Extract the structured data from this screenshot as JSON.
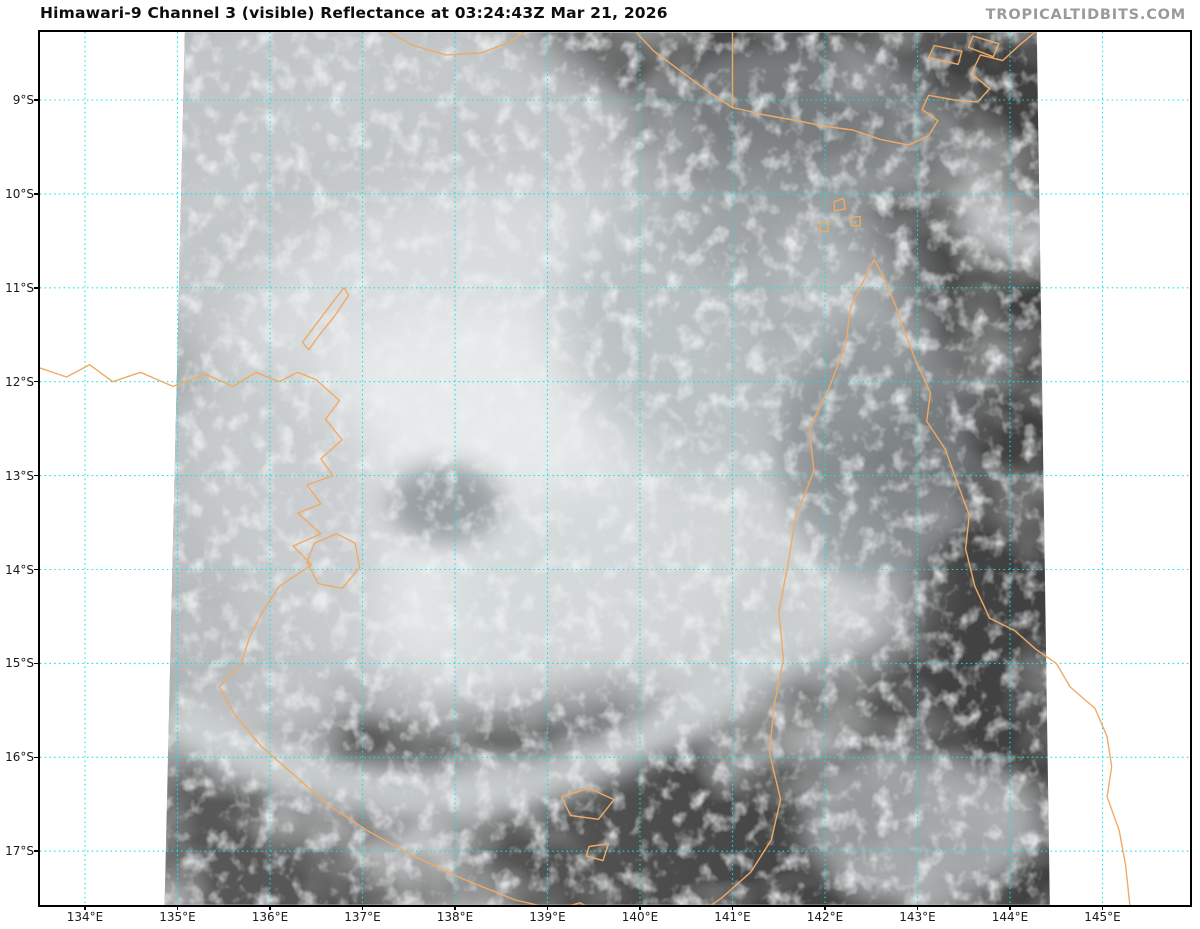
{
  "title": "Himawari-9 Channel 3 (visible) Reflectance at 03:24:43Z Mar 21, 2026",
  "watermark": "TROPICALTIDBITS.COM",
  "map": {
    "grid_color": "#0ce6e6",
    "coast_color": "#f0aa66",
    "border_color": "#000000",
    "ocean_dark": "#474747",
    "cloud_bright": "#e7eaea",
    "axes": {
      "lat_ticks": [
        {
          "value": 9,
          "label": "9°S"
        },
        {
          "value": 10,
          "label": "10°S"
        },
        {
          "value": 11,
          "label": "11°S"
        },
        {
          "value": 12,
          "label": "12°S"
        },
        {
          "value": 13,
          "label": "13°S"
        },
        {
          "value": 14,
          "label": "14°S"
        },
        {
          "value": 15,
          "label": "15°S"
        },
        {
          "value": 16,
          "label": "16°S"
        },
        {
          "value": 17,
          "label": "17°S"
        }
      ],
      "lon_ticks": [
        {
          "value": 134,
          "label": "134°E"
        },
        {
          "value": 135,
          "label": "135°E"
        },
        {
          "value": 136,
          "label": "136°E"
        },
        {
          "value": 137,
          "label": "137°E"
        },
        {
          "value": 138,
          "label": "138°E"
        },
        {
          "value": 139,
          "label": "139°E"
        },
        {
          "value": 140,
          "label": "140°E"
        },
        {
          "value": 141,
          "label": "141°E"
        },
        {
          "value": 142,
          "label": "142°E"
        },
        {
          "value": 143,
          "label": "143°E"
        },
        {
          "value": 144,
          "label": "144°E"
        },
        {
          "value": 145,
          "label": "145°E"
        }
      ]
    },
    "swath_polygon": [
      [
        135.08,
        8.28
      ],
      [
        144.29,
        8.28
      ],
      [
        144.43,
        17.57
      ],
      [
        134.86,
        17.57
      ]
    ],
    "coastlines": [
      {
        "name": "australia-mainland",
        "closed": false,
        "points": [
          [
            133.5,
            11.85
          ],
          [
            133.8,
            11.95
          ],
          [
            134.05,
            11.82
          ],
          [
            134.3,
            12.0
          ],
          [
            134.6,
            11.9
          ],
          [
            134.95,
            12.05
          ],
          [
            135.3,
            11.92
          ],
          [
            135.6,
            12.05
          ],
          [
            135.85,
            11.9
          ],
          [
            136.1,
            12.0
          ],
          [
            136.3,
            11.9
          ],
          [
            136.5,
            11.98
          ],
          [
            136.75,
            12.2
          ],
          [
            136.6,
            12.4
          ],
          [
            136.78,
            12.62
          ],
          [
            136.55,
            12.82
          ],
          [
            136.68,
            13.0
          ],
          [
            136.4,
            13.1
          ],
          [
            136.55,
            13.3
          ],
          [
            136.3,
            13.4
          ],
          [
            136.55,
            13.62
          ],
          [
            136.25,
            13.75
          ],
          [
            136.45,
            13.95
          ],
          [
            136.1,
            14.18
          ],
          [
            135.92,
            14.45
          ],
          [
            135.78,
            14.72
          ],
          [
            135.68,
            15.02
          ],
          [
            135.45,
            15.25
          ],
          [
            135.62,
            15.55
          ],
          [
            135.9,
            15.88
          ],
          [
            136.25,
            16.18
          ],
          [
            136.62,
            16.5
          ],
          [
            137.05,
            16.78
          ],
          [
            137.55,
            17.05
          ],
          [
            138.1,
            17.3
          ],
          [
            138.65,
            17.52
          ],
          [
            139.1,
            17.62
          ],
          [
            139.35,
            17.55
          ],
          [
            139.7,
            17.72
          ],
          [
            140.1,
            17.82
          ],
          [
            140.55,
            17.72
          ],
          [
            140.88,
            17.5
          ],
          [
            141.2,
            17.22
          ],
          [
            141.42,
            16.88
          ],
          [
            141.52,
            16.45
          ],
          [
            141.4,
            15.95
          ],
          [
            141.45,
            15.45
          ],
          [
            141.55,
            14.95
          ],
          [
            141.5,
            14.45
          ],
          [
            141.6,
            13.95
          ],
          [
            141.68,
            13.45
          ],
          [
            141.88,
            12.95
          ],
          [
            141.83,
            12.5
          ],
          [
            142.05,
            12.05
          ],
          [
            142.22,
            11.62
          ],
          [
            142.28,
            11.2
          ],
          [
            142.42,
            10.92
          ],
          [
            142.53,
            10.7
          ],
          [
            142.63,
            10.88
          ],
          [
            142.76,
            11.18
          ],
          [
            142.87,
            11.5
          ],
          [
            143.0,
            11.82
          ],
          [
            143.14,
            12.12
          ],
          [
            143.1,
            12.42
          ],
          [
            143.3,
            12.72
          ],
          [
            143.42,
            13.05
          ],
          [
            143.56,
            13.42
          ],
          [
            143.52,
            13.78
          ],
          [
            143.62,
            14.18
          ],
          [
            143.78,
            14.52
          ],
          [
            144.05,
            14.65
          ],
          [
            144.28,
            14.85
          ],
          [
            144.5,
            15.0
          ],
          [
            144.65,
            15.25
          ],
          [
            144.92,
            15.48
          ],
          [
            145.05,
            15.78
          ],
          [
            145.1,
            16.1
          ],
          [
            145.05,
            16.42
          ],
          [
            145.18,
            16.78
          ],
          [
            145.25,
            17.15
          ],
          [
            145.3,
            17.62
          ]
        ]
      },
      {
        "name": "png-yos-sudarso-coast",
        "closed": false,
        "points": [
          [
            137.28,
            8.27
          ],
          [
            137.55,
            8.42
          ],
          [
            137.9,
            8.52
          ],
          [
            138.28,
            8.5
          ],
          [
            138.6,
            8.38
          ],
          [
            138.75,
            8.27
          ]
        ]
      },
      {
        "name": "png-south-coast",
        "closed": false,
        "points": [
          [
            139.95,
            8.27
          ],
          [
            140.15,
            8.48
          ],
          [
            140.45,
            8.7
          ],
          [
            140.75,
            8.92
          ],
          [
            141.0,
            9.08
          ],
          [
            141.35,
            9.16
          ],
          [
            141.7,
            9.22
          ],
          [
            142.0,
            9.28
          ],
          [
            142.3,
            9.32
          ],
          [
            142.6,
            9.42
          ],
          [
            142.9,
            9.48
          ],
          [
            143.12,
            9.38
          ],
          [
            143.22,
            9.22
          ],
          [
            143.05,
            9.1
          ],
          [
            143.12,
            8.95
          ],
          [
            143.4,
            9.0
          ],
          [
            143.65,
            9.02
          ],
          [
            143.78,
            8.88
          ],
          [
            143.58,
            8.72
          ],
          [
            143.68,
            8.52
          ],
          [
            143.92,
            8.58
          ],
          [
            144.12,
            8.4
          ],
          [
            144.28,
            8.27
          ]
        ]
      },
      {
        "name": "png-border-141e",
        "closed": false,
        "points": [
          [
            141.0,
            8.27
          ],
          [
            141.0,
            9.08
          ]
        ]
      },
      {
        "name": "fly-delta-island-1",
        "closed": true,
        "points": [
          [
            143.18,
            8.42
          ],
          [
            143.48,
            8.48
          ],
          [
            143.44,
            8.62
          ],
          [
            143.12,
            8.55
          ]
        ]
      },
      {
        "name": "fly-delta-island-2",
        "closed": true,
        "points": [
          [
            143.6,
            8.32
          ],
          [
            143.88,
            8.4
          ],
          [
            143.82,
            8.54
          ],
          [
            143.55,
            8.44
          ]
        ]
      },
      {
        "name": "groote-eylandt",
        "closed": true,
        "points": [
          [
            136.48,
            13.72
          ],
          [
            136.72,
            13.62
          ],
          [
            136.92,
            13.72
          ],
          [
            136.97,
            13.98
          ],
          [
            136.78,
            14.2
          ],
          [
            136.52,
            14.15
          ],
          [
            136.4,
            13.92
          ]
        ]
      },
      {
        "name": "wessel-islands",
        "closed": true,
        "points": [
          [
            136.35,
            11.58
          ],
          [
            136.52,
            11.36
          ],
          [
            136.68,
            11.15
          ],
          [
            136.8,
            11.0
          ],
          [
            136.85,
            11.08
          ],
          [
            136.7,
            11.3
          ],
          [
            136.52,
            11.52
          ],
          [
            136.42,
            11.66
          ]
        ]
      },
      {
        "name": "mornington-island",
        "closed": true,
        "points": [
          [
            139.15,
            16.42
          ],
          [
            139.45,
            16.33
          ],
          [
            139.72,
            16.45
          ],
          [
            139.55,
            16.66
          ],
          [
            139.25,
            16.62
          ]
        ]
      },
      {
        "name": "bentinck-island",
        "closed": true,
        "points": [
          [
            139.45,
            16.95
          ],
          [
            139.66,
            16.92
          ],
          [
            139.6,
            17.1
          ],
          [
            139.42,
            17.05
          ]
        ]
      },
      {
        "name": "torres-strait-island-1",
        "closed": true,
        "points": [
          [
            142.1,
            10.08
          ],
          [
            142.2,
            10.05
          ],
          [
            142.22,
            10.16
          ],
          [
            142.1,
            10.18
          ]
        ]
      },
      {
        "name": "torres-strait-island-2",
        "closed": true,
        "points": [
          [
            142.28,
            10.25
          ],
          [
            142.38,
            10.24
          ],
          [
            142.38,
            10.34
          ],
          [
            142.28,
            10.34
          ]
        ]
      },
      {
        "name": "torres-strait-island-3",
        "closed": true,
        "points": [
          [
            141.95,
            10.3
          ],
          [
            142.04,
            10.3
          ],
          [
            142.03,
            10.4
          ],
          [
            141.94,
            10.4
          ]
        ]
      }
    ]
  }
}
